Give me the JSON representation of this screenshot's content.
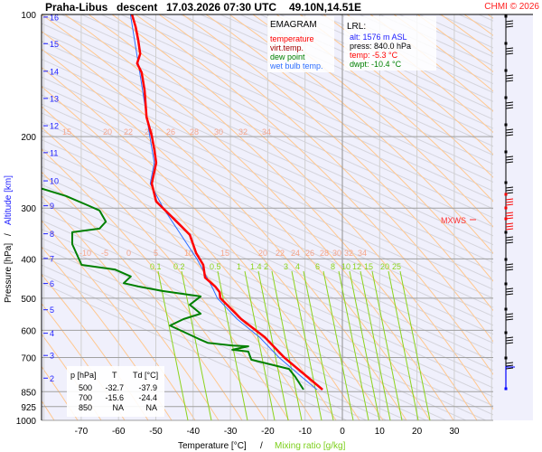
{
  "header": {
    "station": "Praha-Libus",
    "phase": "descent",
    "datetime": "17.03.2026 07:30 UTC",
    "coords": "49.10N,14.51E",
    "copyright": "CHMI © 2026"
  },
  "legend": {
    "title": "EMAGRAM",
    "items": [
      {
        "label": "temperature",
        "color": "#ff0000"
      },
      {
        "label": "virt.temp.",
        "color": "#a00000"
      },
      {
        "label": "dew point",
        "color": "#008000"
      },
      {
        "label": "wet bulb temp.",
        "color": "#3070ff"
      }
    ]
  },
  "lrl": {
    "title": "LRL:",
    "alt": "alt: 1576 m ASL",
    "press": "press: 840.0 hPa",
    "temp": "temp: -5.3 °C",
    "dwpt": "dwpt: -10.4 °C"
  },
  "table": {
    "headers": [
      "p [hPa]",
      "T",
      "Td [°C]"
    ],
    "rows": [
      [
        "500",
        "-32.7",
        "-37.9"
      ],
      [
        "700",
        "-15.6",
        "-24.4"
      ],
      [
        "850",
        "NA",
        "NA"
      ]
    ]
  },
  "mxws_label": "MXWS",
  "chart_data": {
    "type": "line",
    "title": "Praha-Libus   descent   17.03.2026 07:30 UTC  49.10N,14.51E",
    "xlabel": "Temperature [°C]",
    "xlabel2": "Mixing ratio [g/kg]",
    "ylabel": "Pressure [hPa]",
    "ylabel2": "Altitude [km]",
    "ylabel_sep": "/",
    "xlabel_sep": "/",
    "xlim": [
      -80,
      40
    ],
    "ylim": [
      1000,
      100
    ],
    "yscale": "log",
    "grid": true,
    "x_ticks": [
      -70,
      -60,
      -50,
      -40,
      -30,
      -20,
      -10,
      0,
      10,
      20,
      30
    ],
    "y_ticks": [
      100,
      200,
      300,
      400,
      500,
      600,
      700,
      850,
      925,
      1000
    ],
    "altitude_ticks": [
      {
        "km": 2,
        "p": 787
      },
      {
        "km": 3,
        "p": 692
      },
      {
        "km": 4,
        "p": 610
      },
      {
        "km": 5,
        "p": 534
      },
      {
        "km": 6,
        "p": 460
      },
      {
        "km": 7,
        "p": 399
      },
      {
        "km": 8,
        "p": 347
      },
      {
        "km": 9,
        "p": 296
      },
      {
        "km": 10,
        "p": 257
      },
      {
        "km": 11,
        "p": 219
      },
      {
        "km": 12,
        "p": 188
      },
      {
        "km": 13,
        "p": 161
      },
      {
        "km": 14,
        "p": 138
      },
      {
        "km": 15,
        "p": 118
      },
      {
        "km": 16,
        "p": 101.5
      }
    ],
    "moist_adiabat_labels_upper": [
      "15",
      "20",
      "22",
      "24",
      "26",
      "28",
      "30",
      "32",
      "34"
    ],
    "moist_adiabat_labels_lower": [
      "-10",
      "-5",
      "0",
      "5",
      "10",
      "15",
      "20",
      "22",
      "24",
      "26",
      "28",
      "30",
      "32",
      "34"
    ],
    "mixing_ratio_labels": [
      "0.1",
      "0.2",
      "0.5",
      "1",
      "1.4",
      "2",
      "3",
      "4",
      "6",
      "8",
      "10",
      "12",
      "15",
      "20",
      "25"
    ],
    "series": [
      {
        "name": "temperature",
        "color": "#ff0000",
        "p": [
          100,
          107.4,
          116,
          125,
          132,
          139,
          154,
          179,
          199,
          215,
          232,
          261,
          289,
          320,
          349,
          387,
          414,
          445,
          468,
          483,
          500,
          563,
          624,
          700,
          840
        ],
        "T": [
          -56.4,
          -55.4,
          -54.7,
          -54.2,
          -55.0,
          -53.8,
          -53.0,
          -52.5,
          -51.1,
          -50.4,
          -49.9,
          -51.1,
          -49.9,
          -45.0,
          -40.9,
          -39.2,
          -37.3,
          -36.8,
          -34.1,
          -32.9,
          -32.7,
          -27.1,
          -20.8,
          -15.6,
          -5.3
        ]
      },
      {
        "name": "wet bulb temp.",
        "color": "#3070ff",
        "p": [
          100,
          139,
          200,
          232,
          261,
          300,
          400,
          468,
          500,
          563,
          624,
          700,
          780,
          840
        ],
        "T": [
          -56.8,
          -54.3,
          -51.6,
          -50.4,
          -51.5,
          -48,
          -39,
          -35,
          -33.5,
          -28.2,
          -22.2,
          -17.0,
          -11.0,
          -6.8
        ]
      },
      {
        "name": "dew point",
        "color": "#008000",
        "p": [
          268,
          280,
          295,
          304,
          324,
          337,
          344,
          368,
          414,
          425,
          442,
          459,
          468,
          480,
          495,
          519,
          546,
          563,
          584,
          605,
          630,
          644,
          654,
          657,
          670,
          677,
          709,
          747,
          782,
          840
        ],
        "T": [
          -80.9,
          -74.1,
          -68.3,
          -65.1,
          -63.4,
          -65.1,
          -72.4,
          -72.4,
          -69.9,
          -61.0,
          -56.7,
          -58.6,
          -54.7,
          -48.2,
          -38.0,
          -40.9,
          -38.0,
          -42.6,
          -46.2,
          -42.6,
          -38.5,
          -36.1,
          -29.5,
          -25.2,
          -29.5,
          -25.2,
          -24.4,
          -14.3,
          -12.6,
          -10.4
        ]
      }
    ]
  }
}
